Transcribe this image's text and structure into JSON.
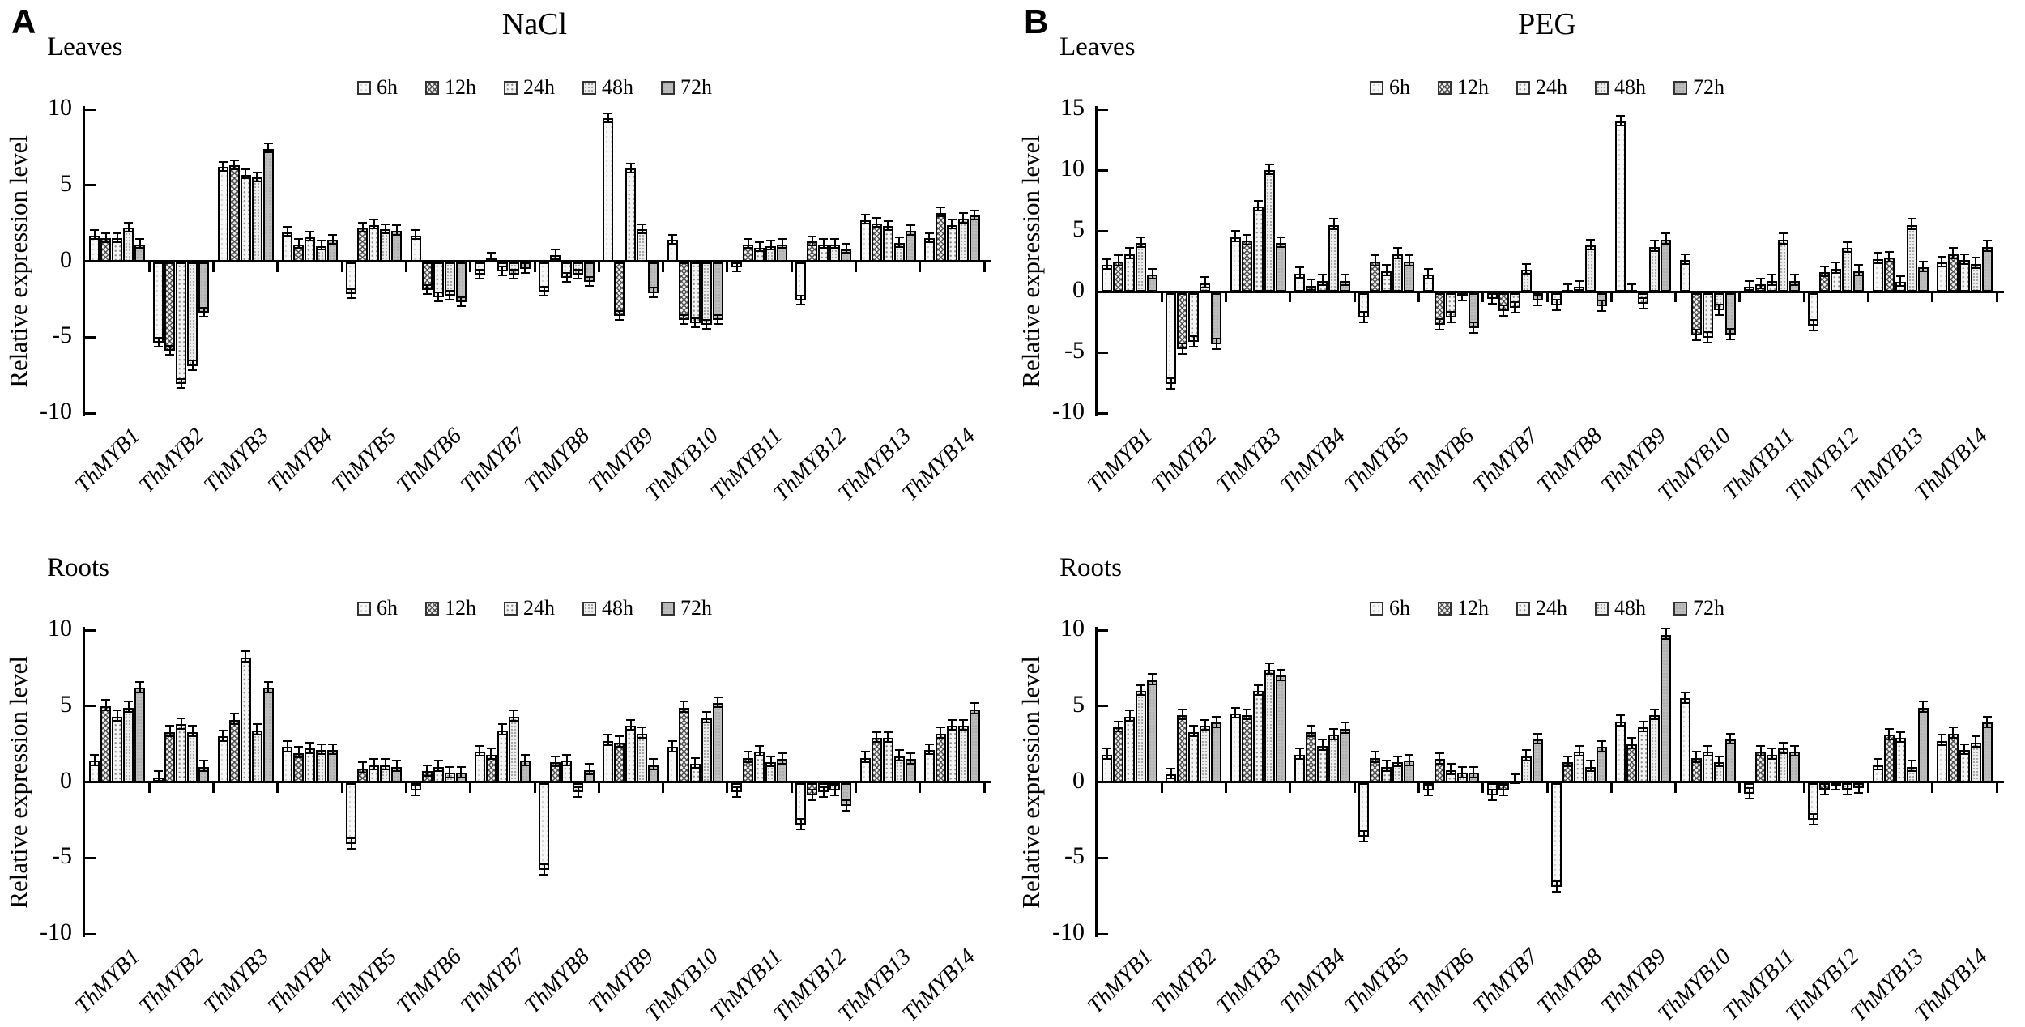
{
  "figure": {
    "ylabel": "Relative expression level",
    "timepoints": [
      "6h",
      "12h",
      "24h",
      "48h",
      "72h"
    ],
    "panels": [
      {
        "label": "A",
        "title": "NaCl",
        "sections": [
          "Leaves",
          "Roots"
        ]
      },
      {
        "label": "B",
        "title": "PEG",
        "sections": [
          "Leaves",
          "Roots"
        ]
      }
    ],
    "colors": {
      "axis": "#000000",
      "bar_border": "#000000",
      "solid_gray": "#bdbdbd"
    }
  },
  "chart_data": [
    {
      "type": "bar",
      "panel": "A",
      "condition": "NaCl",
      "organ": "Leaves",
      "title": "NaCl Leaves",
      "xlabel": "",
      "ylabel": "Relative expression level",
      "ylim": [
        -10,
        10
      ],
      "yticks": [
        10,
        5,
        0,
        -5,
        -10
      ],
      "grid": false,
      "legend_position": "top-center",
      "default_err": 0.35,
      "categories": [
        "ThMYB1",
        "ThMYB2",
        "ThMYB3",
        "ThMYB4",
        "ThMYB5",
        "ThMYB6",
        "ThMYB7",
        "ThMYB8",
        "ThMYB9",
        "ThMYB10",
        "ThMYB11",
        "ThMYB12",
        "ThMYB13",
        "ThMYB14"
      ],
      "series": [
        {
          "name": "6h",
          "values": [
            1.7,
            -5.3,
            6.2,
            1.9,
            -2.1,
            1.7,
            -0.8,
            -1.9,
            9.4,
            1.4,
            -0.3,
            -2.5,
            2.7,
            1.5
          ]
        },
        {
          "name": "12h",
          "values": [
            1.5,
            -5.8,
            6.3,
            1.1,
            2.2,
            -1.8,
            0.2,
            0.4,
            -3.5,
            -3.8,
            1.1,
            1.3,
            2.5,
            3.2
          ]
        },
        {
          "name": "24h",
          "values": [
            1.5,
            -8.0,
            5.7,
            1.6,
            2.4,
            -2.3,
            -0.6,
            -1.0,
            6.1,
            -4.0,
            0.9,
            1.1,
            2.3,
            2.4
          ]
        },
        {
          "name": "48h",
          "values": [
            2.2,
            -6.8,
            5.5,
            1.0,
            2.1,
            -2.2,
            -0.8,
            -0.8,
            2.1,
            -4.1,
            1.0,
            1.1,
            1.2,
            2.8
          ]
        },
        {
          "name": "72h",
          "values": [
            1.1,
            -3.3,
            7.4,
            1.4,
            2.0,
            -2.6,
            -0.4,
            -1.3,
            -2.0,
            -3.8,
            1.1,
            0.8,
            2.0,
            3.0
          ]
        }
      ]
    },
    {
      "type": "bar",
      "panel": "A",
      "condition": "NaCl",
      "organ": "Roots",
      "title": "NaCl Roots",
      "xlabel": "",
      "ylabel": "Relative expression level",
      "ylim": [
        -10,
        10
      ],
      "yticks": [
        10,
        5,
        0,
        -5,
        -10
      ],
      "grid": false,
      "legend_position": "top-center",
      "default_err": 0.4,
      "categories": [
        "ThMYB1",
        "ThMYB2",
        "ThMYB3",
        "ThMYB4",
        "ThMYB5",
        "ThMYB6",
        "ThMYB7",
        "ThMYB8",
        "ThMYB9",
        "ThMYB10",
        "ThMYB11",
        "ThMYB12",
        "ThMYB13",
        "ThMYB14"
      ],
      "series": [
        {
          "name": "6h",
          "values": [
            1.4,
            0.3,
            3.0,
            2.3,
            -4.0,
            -0.5,
            2.0,
            -5.7,
            2.7,
            2.3,
            -0.6,
            -2.7,
            1.6,
            2.1
          ]
        },
        {
          "name": "12h",
          "values": [
            5.0,
            3.3,
            4.1,
            1.9,
            0.9,
            0.7,
            1.8,
            1.3,
            2.6,
            4.9,
            1.6,
            -0.8,
            2.9,
            3.2
          ]
        },
        {
          "name": "24h",
          "values": [
            4.3,
            3.8,
            8.2,
            2.2,
            1.1,
            1.0,
            3.4,
            1.4,
            3.7,
            1.2,
            2.0,
            -0.6,
            2.9,
            3.7
          ]
        },
        {
          "name": "48h",
          "values": [
            4.9,
            3.3,
            3.4,
            2.1,
            1.1,
            0.6,
            4.3,
            -0.6,
            3.2,
            4.2,
            1.3,
            -0.5,
            1.7,
            3.7
          ]
        },
        {
          "name": "72h",
          "values": [
            6.2,
            1.0,
            6.2,
            2.1,
            1.0,
            0.6,
            1.4,
            0.8,
            1.1,
            5.2,
            1.5,
            -1.5,
            1.5,
            4.8
          ]
        }
      ]
    },
    {
      "type": "bar",
      "panel": "B",
      "condition": "PEG",
      "organ": "Leaves",
      "title": "PEG Leaves",
      "xlabel": "",
      "ylabel": "Relative expression level",
      "ylim": [
        -10,
        15
      ],
      "yticks": [
        15,
        10,
        5,
        0,
        -5,
        -10
      ],
      "grid": false,
      "legend_position": "top-center",
      "default_err": 0.5,
      "categories": [
        "ThMYB1",
        "ThMYB2",
        "ThMYB3",
        "ThMYB4",
        "ThMYB5",
        "ThMYB6",
        "ThMYB7",
        "ThMYB8",
        "ThMYB9",
        "ThMYB10",
        "ThMYB11",
        "ThMYB12",
        "ThMYB13",
        "ThMYB14"
      ],
      "series": [
        {
          "name": "6h",
          "values": [
            2.2,
            -7.5,
            4.5,
            1.5,
            -2.0,
            1.4,
            -0.5,
            -1.0,
            14.0,
            2.6,
            0.4,
            -2.7,
            2.7,
            2.4
          ]
        },
        {
          "name": "12h",
          "values": [
            2.5,
            -4.6,
            4.2,
            0.5,
            2.5,
            -2.6,
            -1.5,
            0.1,
            0.1,
            -3.5,
            0.6,
            1.6,
            2.8,
            3.1
          ]
        },
        {
          "name": "24h",
          "values": [
            3.1,
            -4.0,
            7.0,
            0.9,
            1.7,
            -2.0,
            -1.2,
            0.4,
            -0.9,
            -3.7,
            0.9,
            1.9,
            0.8,
            2.6
          ]
        },
        {
          "name": "48h",
          "values": [
            4.0,
            0.7,
            10.0,
            5.5,
            3.1,
            -0.2,
            1.8,
            3.8,
            3.7,
            -1.4,
            4.3,
            3.6,
            5.5,
            2.3
          ]
        },
        {
          "name": "72h",
          "values": [
            1.4,
            -4.2,
            4.0,
            0.9,
            2.5,
            -2.9,
            -0.6,
            -1.1,
            4.3,
            -3.4,
            0.9,
            1.7,
            2.0,
            3.7
          ]
        }
      ]
    },
    {
      "type": "bar",
      "panel": "B",
      "condition": "PEG",
      "organ": "Roots",
      "title": "PEG Roots",
      "xlabel": "",
      "ylabel": "Relative expression level",
      "ylim": [
        -10,
        10
      ],
      "yticks": [
        10,
        5,
        0,
        -5,
        -10
      ],
      "grid": false,
      "legend_position": "top-center",
      "default_err": 0.4,
      "categories": [
        "ThMYB1",
        "ThMYB2",
        "ThMYB3",
        "ThMYB4",
        "ThMYB5",
        "ThMYB6",
        "ThMYB7",
        "ThMYB8",
        "ThMYB9",
        "ThMYB10",
        "ThMYB11",
        "ThMYB12",
        "ThMYB13",
        "ThMYB14"
      ],
      "series": [
        {
          "name": "6h",
          "values": [
            1.8,
            0.5,
            4.5,
            1.8,
            -3.5,
            -0.5,
            -0.8,
            -6.8,
            4.0,
            5.5,
            -0.7,
            -2.4,
            1.1,
            2.7
          ]
        },
        {
          "name": "12h",
          "values": [
            3.6,
            4.4,
            4.4,
            3.3,
            1.6,
            1.5,
            -0.5,
            1.3,
            2.5,
            1.6,
            2.0,
            -0.4,
            3.1,
            3.2
          ]
        },
        {
          "name": "24h",
          "values": [
            4.3,
            3.3,
            6.0,
            2.4,
            1.0,
            0.8,
            0.1,
            2.0,
            3.6,
            2.0,
            1.8,
            -0.1,
            2.9,
            2.1
          ]
        },
        {
          "name": "48h",
          "values": [
            6.0,
            3.7,
            7.4,
            3.1,
            1.3,
            0.6,
            1.7,
            1.0,
            4.4,
            1.3,
            2.2,
            -0.4,
            1.0,
            2.6
          ]
        },
        {
          "name": "72h",
          "values": [
            6.7,
            3.9,
            7.0,
            3.5,
            1.4,
            0.6,
            2.8,
            2.3,
            9.7,
            2.8,
            2.0,
            -0.3,
            4.9,
            3.9
          ]
        }
      ]
    }
  ]
}
